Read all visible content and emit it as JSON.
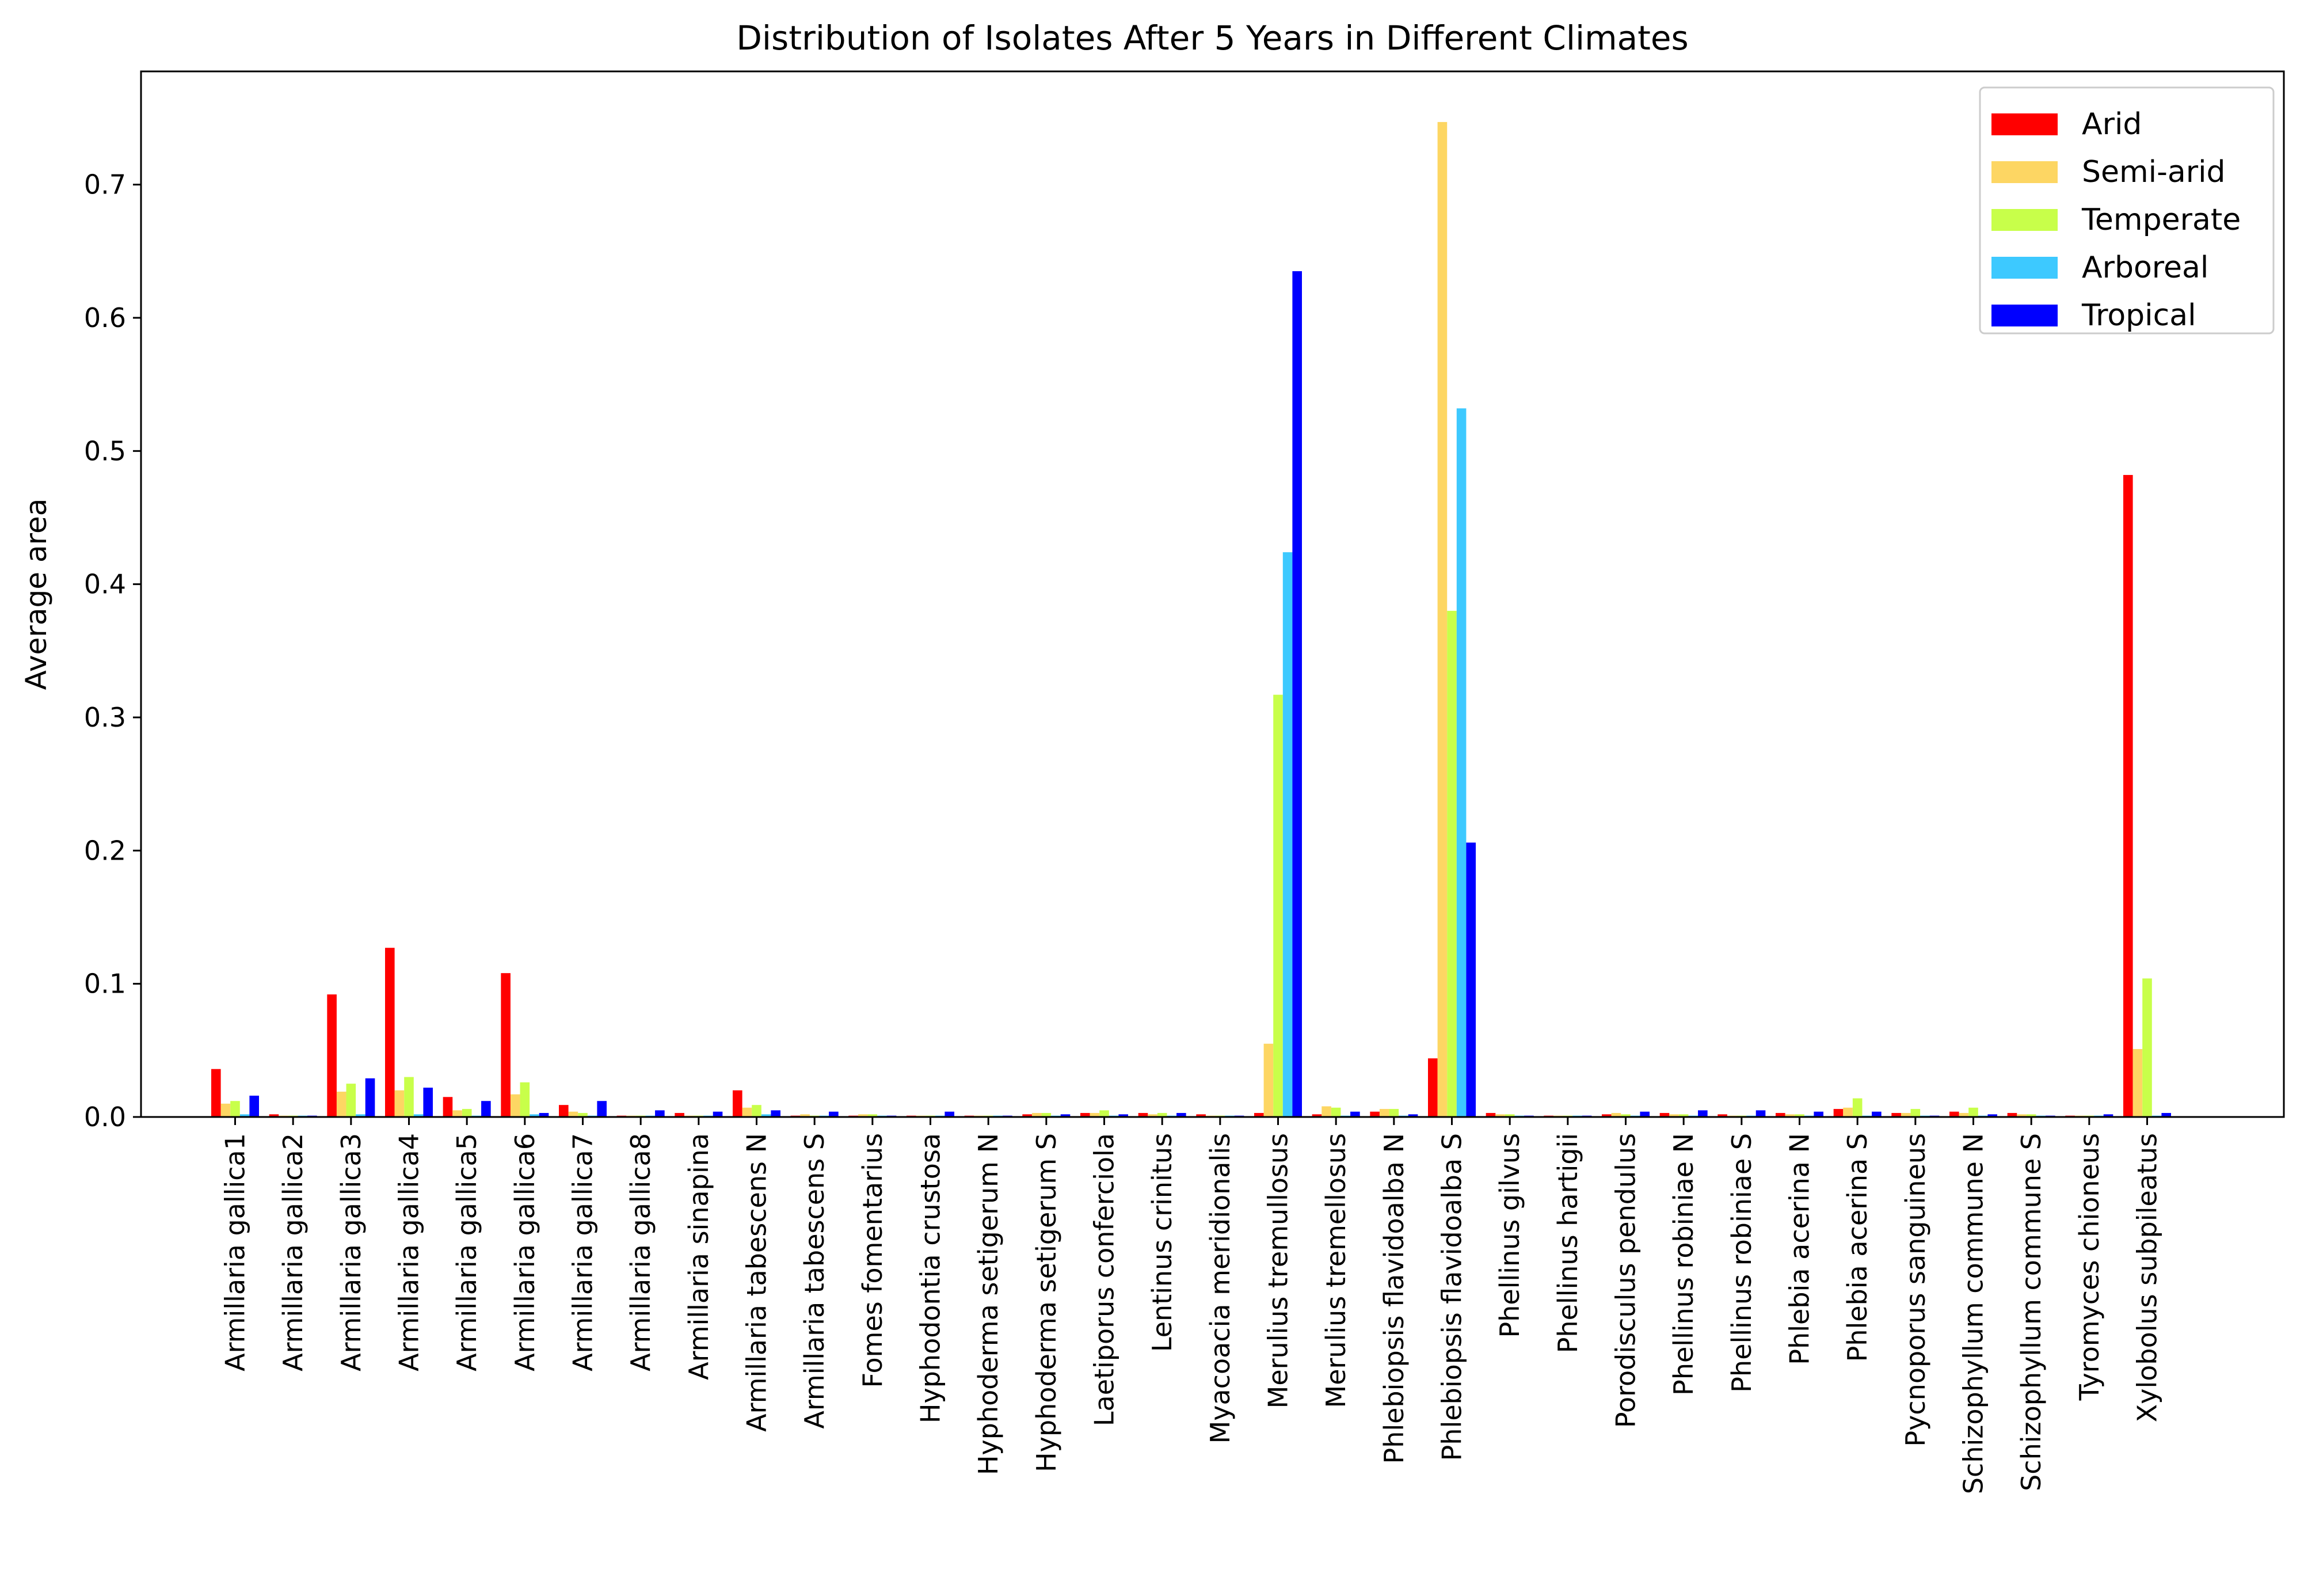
{
  "chart_data": {
    "type": "bar",
    "title": "Distribution of Isolates After 5 Years in Different Climates",
    "xlabel": "",
    "ylabel": "Average area",
    "ylim": [
      0,
      0.785
    ],
    "yticks": [
      "0.0",
      "0.1",
      "0.2",
      "0.3",
      "0.4",
      "0.5",
      "0.6",
      "0.7"
    ],
    "grid": false,
    "legend_position": "top-right",
    "categories": [
      "Armillaria gallica1",
      "Armillaria gallica2",
      "Armillaria gallica3",
      "Armillaria gallica4",
      "Armillaria gallica5",
      "Armillaria gallica6",
      "Armillaria gallica7",
      "Armillaria gallica8",
      "Armillaria sinapina",
      "Armillaria tabescens N",
      "Armillaria tabescens S",
      "Fomes fomentarius",
      "Hyphodontia crustosa",
      "Hyphoderma setigerum N",
      "Hyphoderma setigerum S",
      "Laetiporus conferciola",
      "Lentinus crinitus",
      "Myacoacia meridionalis",
      "Merulius tremullosus",
      "Merulius tremellosus",
      "Phlebiopsis flavidoalba N",
      "Phlebiopsis flavidoalba S",
      "Phellinus gilvus",
      "Phellinus hartigii",
      "Porodisculus pendulus",
      "Phellinus robiniae N",
      "Phellinus robiniae S",
      "Phlebia acerina N",
      "Phlebia acerina S",
      "Pycnoporus sanguineus",
      "Schizophyllum commune N",
      "Schizophyllum commune S",
      "Tyromyces chioneus",
      "Xylobolus subpileatus"
    ],
    "series": [
      {
        "name": "Arid",
        "color": "#ff0000",
        "values": [
          0.036,
          0.002,
          0.092,
          0.127,
          0.015,
          0.108,
          0.009,
          0.001,
          0.003,
          0.02,
          0.001,
          0.001,
          0.001,
          0.001,
          0.002,
          0.003,
          0.003,
          0.002,
          0.003,
          0.002,
          0.004,
          0.044,
          0.003,
          0.001,
          0.002,
          0.003,
          0.002,
          0.003,
          0.006,
          0.003,
          0.004,
          0.003,
          0.001,
          0.482
        ]
      },
      {
        "name": "Semi-arid",
        "color": "#fdd663",
        "values": [
          0.01,
          0.001,
          0.019,
          0.02,
          0.005,
          0.017,
          0.004,
          0.001,
          0.001,
          0.007,
          0.002,
          0.002,
          0.001,
          0.001,
          0.003,
          0.003,
          0.002,
          0.001,
          0.055,
          0.008,
          0.006,
          0.747,
          0.002,
          0.001,
          0.003,
          0.002,
          0.001,
          0.002,
          0.007,
          0.003,
          0.003,
          0.002,
          0.001,
          0.051
        ]
      },
      {
        "name": "Temperate",
        "color": "#c8ff4a",
        "values": [
          0.012,
          0.001,
          0.025,
          0.03,
          0.006,
          0.026,
          0.003,
          0.001,
          0.001,
          0.009,
          0.001,
          0.002,
          0.001,
          0.001,
          0.003,
          0.005,
          0.003,
          0.001,
          0.317,
          0.007,
          0.006,
          0.38,
          0.002,
          0.001,
          0.002,
          0.002,
          0.001,
          0.002,
          0.014,
          0.006,
          0.007,
          0.002,
          0.001,
          0.104
        ]
      },
      {
        "name": "Arboreal",
        "color": "#3dc9ff",
        "values": [
          0.002,
          0.001,
          0.002,
          0.002,
          0.001,
          0.002,
          0.001,
          0.001,
          0.001,
          0.002,
          0.001,
          0.001,
          0.001,
          0.001,
          0.001,
          0.001,
          0.001,
          0.001,
          0.424,
          0.001,
          0.001,
          0.532,
          0.001,
          0.001,
          0.001,
          0.001,
          0.001,
          0.001,
          0.001,
          0.001,
          0.001,
          0.001,
          0.001,
          0.001
        ]
      },
      {
        "name": "Tropical",
        "color": "#0000ff",
        "values": [
          0.016,
          0.001,
          0.029,
          0.022,
          0.012,
          0.003,
          0.012,
          0.005,
          0.004,
          0.005,
          0.004,
          0.001,
          0.004,
          0.001,
          0.002,
          0.002,
          0.003,
          0.001,
          0.635,
          0.004,
          0.002,
          0.206,
          0.001,
          0.001,
          0.004,
          0.005,
          0.005,
          0.004,
          0.004,
          0.001,
          0.002,
          0.001,
          0.002,
          0.003
        ]
      }
    ]
  }
}
